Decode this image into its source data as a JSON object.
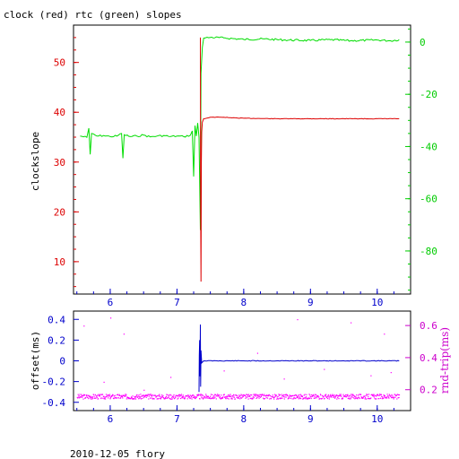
{
  "chart_data": [
    {
      "type": "line",
      "title": "clock (red) rtc (green) slopes",
      "ylabel": "clockslope",
      "xlim": [
        5.45,
        10.5
      ],
      "x_ticks": [
        6,
        7,
        8,
        9,
        10
      ],
      "ylim_left": [
        3.5,
        57.5
      ],
      "y_ticks_left": [
        10,
        20,
        30,
        40,
        50
      ],
      "ylim_right": [
        -96.5,
        6.5
      ],
      "y_ticks_right": [
        0,
        -20,
        -40,
        -60,
        -80
      ],
      "colors": {
        "clock": "#dd0000",
        "rtc": "#00dd00",
        "axes_left": "#dd0000",
        "axes_right": "#00cc00",
        "x_axis": "#0000cc"
      },
      "series": [
        {
          "key": "rtc",
          "axis": "right",
          "points": [
            [
              5.55,
              -36
            ],
            [
              5.65,
              -36.5
            ],
            [
              5.68,
              -33
            ],
            [
              5.7,
              -43
            ],
            [
              5.72,
              -35
            ],
            [
              5.8,
              -36
            ],
            [
              5.9,
              -35.8
            ],
            [
              6.0,
              -36.2
            ],
            [
              6.1,
              -36
            ],
            [
              6.17,
              -35
            ],
            [
              6.19,
              -44.5
            ],
            [
              6.21,
              -35.5
            ],
            [
              6.3,
              -36.2
            ],
            [
              6.4,
              -36
            ],
            [
              6.5,
              -35.6
            ],
            [
              6.6,
              -36.3
            ],
            [
              6.7,
              -36
            ],
            [
              6.8,
              -35.8
            ],
            [
              6.9,
              -36.2
            ],
            [
              7.0,
              -36
            ],
            [
              7.1,
              -36.2
            ],
            [
              7.2,
              -35.7
            ],
            [
              7.23,
              -34
            ],
            [
              7.25,
              -51.5
            ],
            [
              7.27,
              -32
            ],
            [
              7.29,
              -36
            ],
            [
              7.31,
              -31
            ],
            [
              7.33,
              -36.5
            ],
            [
              7.35,
              -72
            ],
            [
              7.36,
              -12
            ],
            [
              7.38,
              -2
            ],
            [
              7.4,
              1.5
            ],
            [
              7.5,
              1.8
            ],
            [
              7.7,
              1.6
            ],
            [
              8.0,
              1.0
            ],
            [
              8.3,
              1.2
            ],
            [
              8.6,
              0.8
            ],
            [
              9.0,
              0.6
            ],
            [
              9.3,
              0.9
            ],
            [
              9.6,
              0.5
            ],
            [
              10.0,
              0.8
            ],
            [
              10.2,
              0.5
            ],
            [
              10.33,
              0.9
            ]
          ]
        },
        {
          "key": "clock",
          "axis": "left",
          "points": [
            [
              7.35,
              55
            ],
            [
              7.355,
              20
            ],
            [
              7.36,
              6
            ],
            [
              7.365,
              30
            ],
            [
              7.37,
              36
            ],
            [
              7.38,
              38
            ],
            [
              7.4,
              38.7
            ],
            [
              7.5,
              39
            ],
            [
              7.7,
              39
            ],
            [
              7.8,
              38.9
            ],
            [
              8.0,
              38.8
            ],
            [
              8.5,
              38.7
            ],
            [
              9.0,
              38.7
            ],
            [
              9.5,
              38.7
            ],
            [
              10.0,
              38.7
            ],
            [
              10.33,
              38.7
            ]
          ]
        }
      ]
    },
    {
      "type": "scatter",
      "ylabel_left": "offset(ms)",
      "ylabel_right": "rnd-trip(ms)",
      "xlim": [
        5.45,
        10.5
      ],
      "x_ticks": [
        6,
        7,
        8,
        9,
        10
      ],
      "ylim_left": [
        -0.48,
        0.48
      ],
      "y_ticks_left": [
        0.4,
        0.2,
        0,
        -0.2,
        -0.4
      ],
      "ylim_right": [
        0.07,
        0.69
      ],
      "y_ticks_right": [
        0.6,
        0.4,
        0.2
      ],
      "colors": {
        "offset": "#0000cc",
        "rtt": "#ff00ff",
        "axes_left": "#0000cc",
        "axes_right": "#cc00cc"
      },
      "series": [
        {
          "key": "offset",
          "axis": "left",
          "points": [
            [
              7.33,
              -0.3
            ],
            [
              7.335,
              0.05
            ],
            [
              7.34,
              0.2
            ],
            [
              7.345,
              -0.15
            ],
            [
              7.35,
              0.35
            ],
            [
              7.355,
              -0.25
            ],
            [
              7.36,
              0.1
            ],
            [
              7.37,
              -0.02
            ],
            [
              7.4,
              0.0
            ],
            [
              7.6,
              0.0
            ],
            [
              8.0,
              0.0
            ],
            [
              8.5,
              0.0
            ],
            [
              9.0,
              0.0
            ],
            [
              9.5,
              0.0
            ],
            [
              10.0,
              0.0
            ],
            [
              10.33,
              0.0
            ]
          ]
        },
        {
          "key": "rtt",
          "axis": "right",
          "level": 0.16,
          "outliers": [
            [
              5.6,
              0.6
            ],
            [
              6.0,
              0.65
            ],
            [
              6.2,
              0.55
            ],
            [
              6.9,
              0.28
            ],
            [
              7.7,
              0.32
            ],
            [
              8.2,
              0.43
            ],
            [
              8.6,
              0.27
            ],
            [
              8.8,
              0.64
            ],
            [
              9.2,
              0.33
            ],
            [
              9.6,
              0.62
            ],
            [
              9.9,
              0.29
            ],
            [
              10.1,
              0.55
            ],
            [
              10.2,
              0.31
            ],
            [
              6.5,
              0.2
            ],
            [
              5.9,
              0.25
            ]
          ]
        }
      ]
    }
  ],
  "footer": {
    "text": "2010-12-05 flory"
  }
}
